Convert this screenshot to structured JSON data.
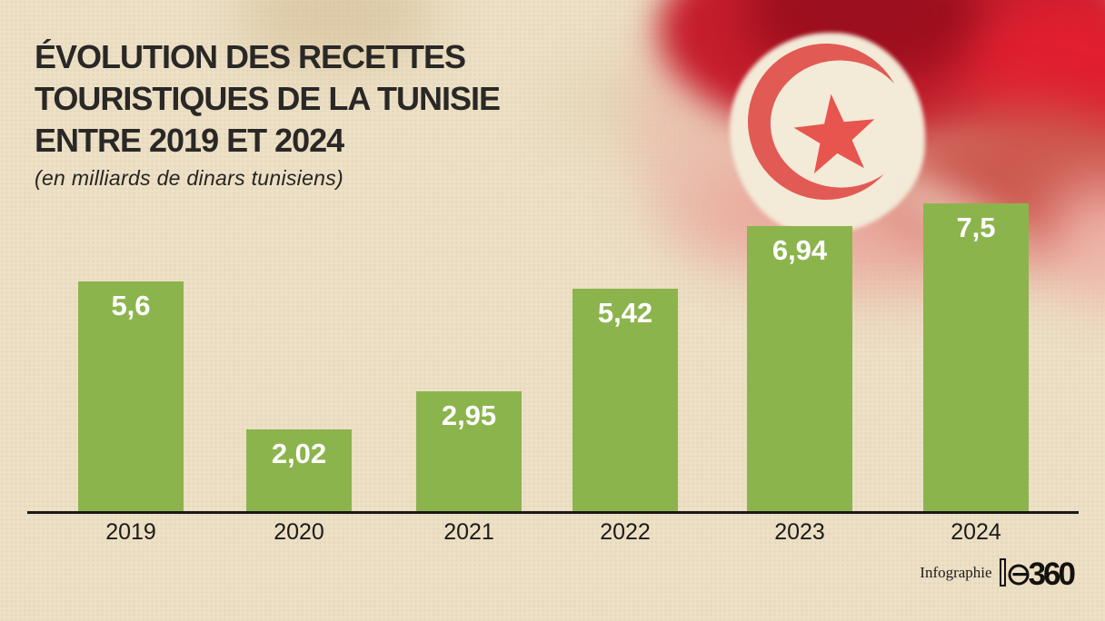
{
  "title": {
    "lines": [
      "ÉVOLUTION DES RECETTES",
      "TOURISTIQUES DE LA TUNISIE",
      "ENTRE 2019 ET 2024"
    ]
  },
  "subtitle": "(en  milliards de dinars tunisiens)",
  "chart_data": {
    "type": "bar",
    "categories": [
      "2019",
      "2020",
      "2021",
      "2022",
      "2023",
      "2024"
    ],
    "values": [
      5.6,
      2.02,
      2.95,
      5.42,
      6.94,
      7.5
    ],
    "value_labels": [
      "5,6",
      "2,02",
      "2,95",
      "5,42",
      "6,94",
      "7,5"
    ],
    "title": "Évolution des recettes touristiques de la Tunisie entre 2019 et 2024",
    "unit": "milliards de dinars tunisiens",
    "xlabel": "",
    "ylabel": "",
    "ylim": [
      0,
      7.5
    ],
    "grid": false,
    "legend": false,
    "bar_color": "#8cb44d",
    "value_label_color": "#ffffff"
  },
  "footer": {
    "credit": "Infographie",
    "brand_num": "360"
  },
  "flag": {
    "name": "tunisia-flag",
    "red": "#c51d2b",
    "emblem_red": "#e25a54",
    "white": "#f3ead8"
  },
  "colors": {
    "background": "#ecdfc4",
    "title": "#292826",
    "axis": "#191917",
    "year_label": "#1d1c1a"
  }
}
